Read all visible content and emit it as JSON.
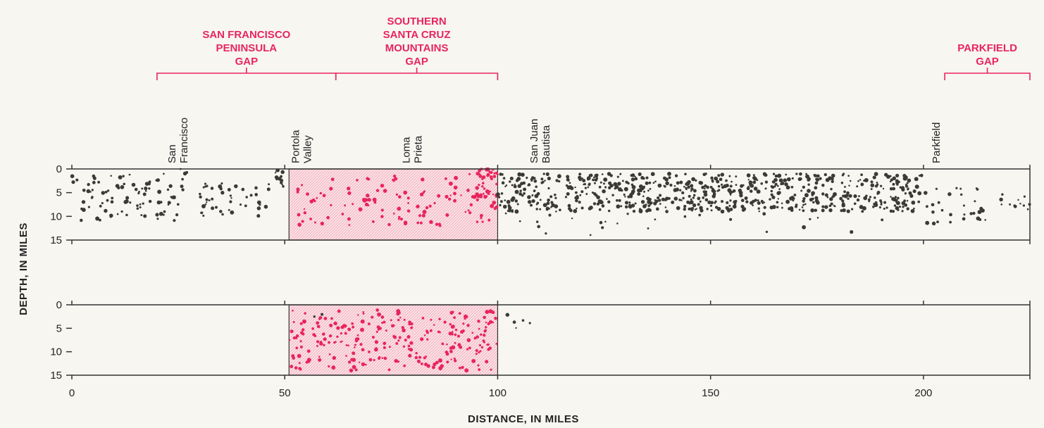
{
  "chart_data": {
    "type": "scatter",
    "xlabel": "DISTANCE, IN MILES",
    "ylabel": "DEPTH, IN MILES",
    "xlim": [
      0,
      225
    ],
    "ylim": [
      0,
      15
    ],
    "x_ticks": [
      0,
      50,
      100,
      150,
      200
    ],
    "y_ticks": [
      0,
      5,
      10,
      15
    ],
    "gaps": [
      {
        "lines": [
          "SAN FRANCISCO",
          "PENINSULA",
          "GAP"
        ],
        "x_start": 20,
        "x_end": 62
      },
      {
        "lines": [
          "SOUTHERN",
          "SANTA CRUZ",
          "MOUNTAINS",
          "GAP"
        ],
        "x_start": 62,
        "x_end": 100
      },
      {
        "lines": [
          "PARKFIELD",
          "GAP"
        ],
        "x_start": 205,
        "x_end": 225
      }
    ],
    "places": [
      {
        "lines": [
          "San",
          "Francisco"
        ],
        "x": 15
      },
      {
        "lines": [
          "Portola",
          "Valley"
        ],
        "x": 44
      },
      {
        "lines": [
          "Loma",
          "Prieta"
        ],
        "x": 70
      },
      {
        "lines": [
          "San Juan",
          "Bautista"
        ],
        "x": 100
      },
      {
        "lines": [
          "Parkfield"
        ],
        "x": 203
      }
    ],
    "panels": [
      {
        "name": "upper",
        "shaded_range": [
          51,
          100
        ],
        "clusters": [
          {
            "x_range": [
              0,
              25
            ],
            "y_range": [
              1,
              11
            ],
            "n": 90,
            "color": "#3a3a36"
          },
          {
            "x_range": [
              25,
              27
            ],
            "y_range": [
              0,
              5
            ],
            "n": 6,
            "color": "#3a3a36"
          },
          {
            "x_range": [
              30,
              47
            ],
            "y_range": [
              3,
              10
            ],
            "n": 45,
            "color": "#3a3a36"
          },
          {
            "x_range": [
              47,
              50
            ],
            "y_range": [
              0,
              4
            ],
            "n": 12,
            "color": "#3a3a36"
          },
          {
            "x_range": [
              51,
              100
            ],
            "y_range": [
              1,
              12
            ],
            "n": 120,
            "color": "#e8255d"
          },
          {
            "x_range": [
              95,
              100
            ],
            "y_range": [
              0,
              6
            ],
            "n": 40,
            "color": "#e8255d"
          },
          {
            "x_range": [
              100,
              200
            ],
            "y_range": [
              1,
              9
            ],
            "n": 700,
            "color": "#3a3a36"
          },
          {
            "x_range": [
              100,
              200
            ],
            "y_range": [
              9,
              14
            ],
            "n": 25,
            "color": "#3a3a36"
          },
          {
            "x_range": [
              200,
              215
            ],
            "y_range": [
              4,
              12
            ],
            "n": 30,
            "color": "#3a3a36"
          },
          {
            "x_range": [
              218,
              225
            ],
            "y_range": [
              4,
              9
            ],
            "n": 12,
            "color": "#3a3a36"
          }
        ]
      },
      {
        "name": "lower",
        "shaded_range": [
          51,
          100
        ],
        "clusters": [
          {
            "x_range": [
              51,
              100
            ],
            "y_range": [
              1,
              14
            ],
            "n": 260,
            "color": "#e8255d"
          },
          {
            "x_range": [
              56,
              60
            ],
            "y_range": [
              2,
              4
            ],
            "n": 2,
            "color": "#3a3a36"
          },
          {
            "x_range": [
              100,
              108
            ],
            "y_range": [
              0,
              5
            ],
            "n": 5,
            "color": "#3a3a36"
          }
        ]
      }
    ]
  }
}
